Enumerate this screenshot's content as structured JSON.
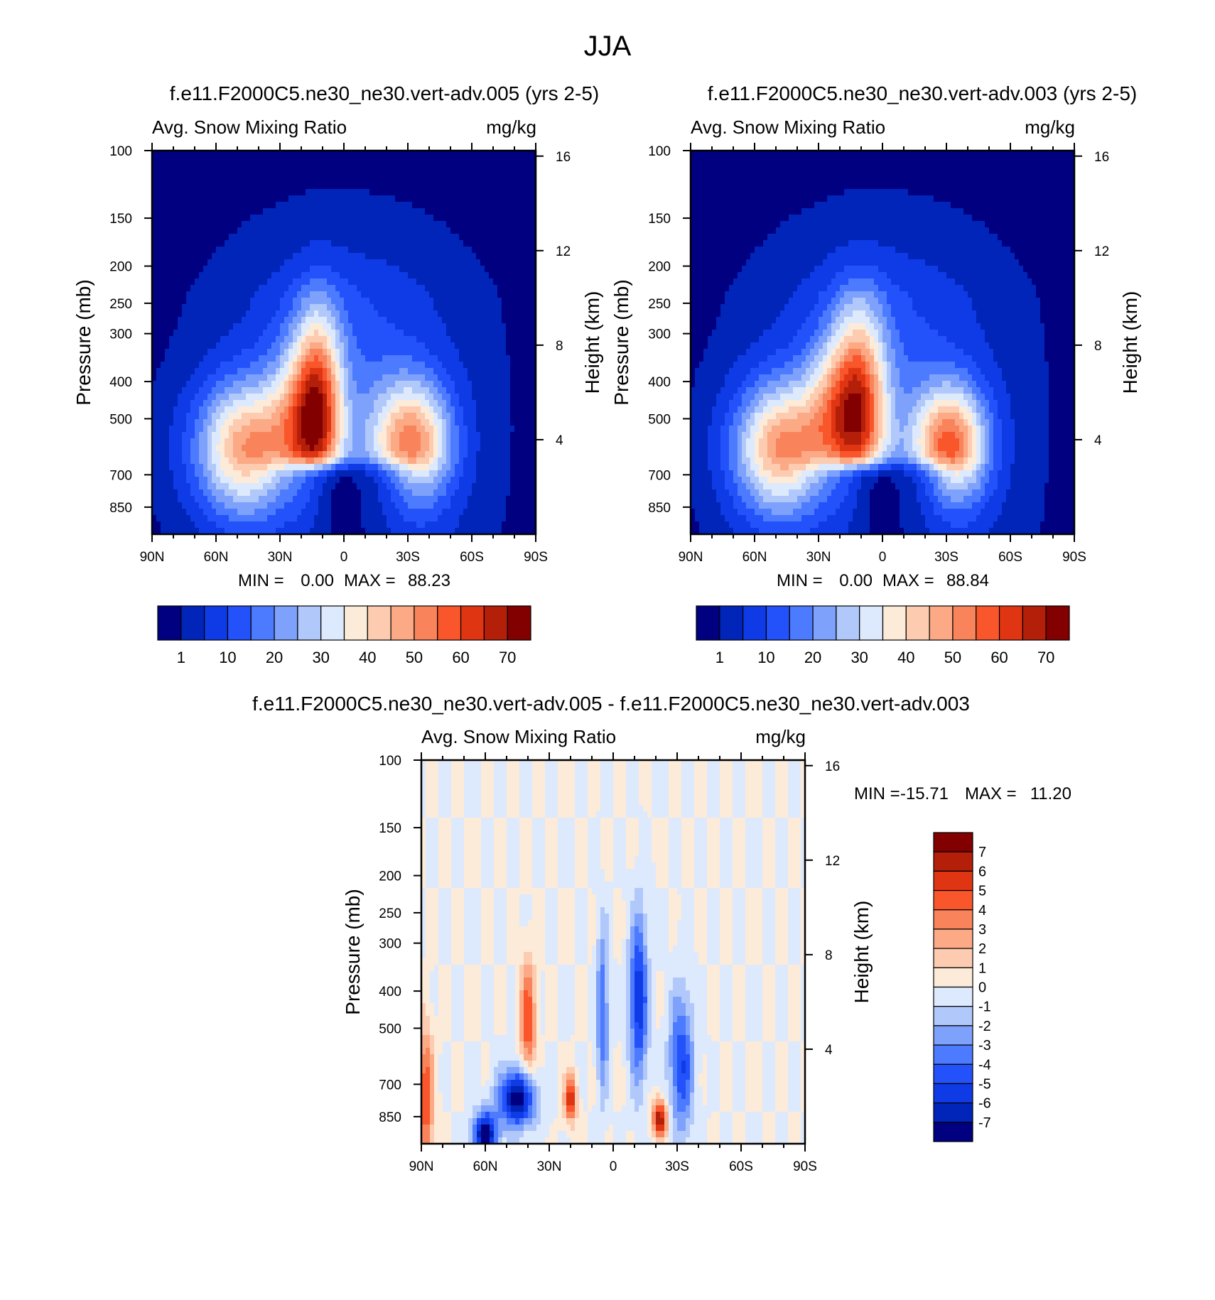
{
  "figure_title": "JJA",
  "chart_data": [
    {
      "type": "heatmap",
      "id": "case-a",
      "title": "f.e11.F2000C5.ne30_ne30.vert-adv.005 (yrs 2-5)",
      "left_label": "Avg. Snow Mixing Ratio",
      "right_label": "mg/kg",
      "ylabel": "Pressure (mb)",
      "y2label": "Height (km)",
      "x_ticks": [
        "90N",
        "60N",
        "30N",
        "0",
        "30S",
        "60S",
        "90S"
      ],
      "x_values": [
        -90,
        -60,
        -30,
        0,
        30,
        60,
        90
      ],
      "y_ticks": [
        "100",
        "150",
        "200",
        "250",
        "300",
        "400",
        "500",
        "700",
        "850"
      ],
      "y_values": [
        100,
        150,
        200,
        250,
        300,
        400,
        500,
        700,
        850
      ],
      "ylim": [
        100,
        1000
      ],
      "y2_ticks": [
        "16",
        "12",
        "8",
        "4"
      ],
      "y2_values": [
        16,
        12,
        8,
        4
      ],
      "min_label": "MIN =",
      "min_value": "0.00",
      "max_label": "MAX =",
      "max_value": "88.23",
      "colorbar": {
        "orientation": "horizontal",
        "labels": [
          "1",
          "10",
          "20",
          "30",
          "40",
          "50",
          "60",
          "70"
        ],
        "levels": [
          1,
          5,
          10,
          15,
          20,
          25,
          30,
          35,
          40,
          45,
          50,
          55,
          60,
          65,
          70
        ],
        "colors": [
          "#000080",
          "#0025b8",
          "#0f3be6",
          "#2352fa",
          "#4d7bff",
          "#7ea1fb",
          "#b1c8fb",
          "#dde9fc",
          "#fdebd9",
          "#fccbb0",
          "#fca986",
          "#f9845b",
          "#f9562b",
          "#e03512",
          "#b31f09",
          "#820000"
        ]
      },
      "features": [
        {
          "lat": -45,
          "lev": 600,
          "amp": 45,
          "sx": 17,
          "sy": 0.28
        },
        {
          "lat": -12,
          "lev": 480,
          "amp": 48,
          "sx": 8,
          "sy": 0.42
        },
        {
          "lat": 32,
          "lev": 580,
          "amp": 45,
          "sx": 13,
          "sy": 0.26
        },
        {
          "lat": -22,
          "lev": 480,
          "amp": 18,
          "sx": 9,
          "sy": 0.32
        },
        {
          "lat": 0,
          "lev": 500,
          "amp": 14,
          "sx": 34,
          "sy": 0.9
        }
      ]
    },
    {
      "type": "heatmap",
      "id": "case-b",
      "title": "f.e11.F2000C5.ne30_ne30.vert-adv.003 (yrs 2-5)",
      "left_label": "Avg. Snow Mixing Ratio",
      "right_label": "mg/kg",
      "ylabel": "Pressure (mb)",
      "y2label": "Height (km)",
      "x_ticks": [
        "90N",
        "60N",
        "30N",
        "0",
        "30S",
        "60S",
        "90S"
      ],
      "x_values": [
        -90,
        -60,
        -30,
        0,
        30,
        60,
        90
      ],
      "y_ticks": [
        "100",
        "150",
        "200",
        "250",
        "300",
        "400",
        "500",
        "700",
        "850"
      ],
      "y_values": [
        100,
        150,
        200,
        250,
        300,
        400,
        500,
        700,
        850
      ],
      "ylim": [
        100,
        1000
      ],
      "y2_ticks": [
        "16",
        "12",
        "8",
        "4"
      ],
      "y2_values": [
        16,
        12,
        8,
        4
      ],
      "min_label": "MIN =",
      "min_value": "0.00",
      "max_label": "MAX =",
      "max_value": "88.84",
      "colorbar": {
        "orientation": "horizontal",
        "labels": [
          "1",
          "10",
          "20",
          "30",
          "40",
          "50",
          "60",
          "70"
        ],
        "levels": [
          1,
          5,
          10,
          15,
          20,
          25,
          30,
          35,
          40,
          45,
          50,
          55,
          60,
          65,
          70
        ],
        "colors": [
          "#000080",
          "#0025b8",
          "#0f3be6",
          "#2352fa",
          "#4d7bff",
          "#7ea1fb",
          "#b1c8fb",
          "#dde9fc",
          "#fdebd9",
          "#fccbb0",
          "#fca986",
          "#f9845b",
          "#f9562b",
          "#e03512",
          "#b31f09",
          "#820000"
        ]
      },
      "features": [
        {
          "lat": -47,
          "lev": 600,
          "amp": 46,
          "sx": 16,
          "sy": 0.28
        },
        {
          "lat": -11,
          "lev": 470,
          "amp": 50,
          "sx": 9,
          "sy": 0.42
        },
        {
          "lat": 32,
          "lev": 590,
          "amp": 50,
          "sx": 12,
          "sy": 0.25
        },
        {
          "lat": -25,
          "lev": 470,
          "amp": 20,
          "sx": 9,
          "sy": 0.3
        },
        {
          "lat": 0,
          "lev": 500,
          "amp": 14,
          "sx": 34,
          "sy": 0.9
        }
      ]
    },
    {
      "type": "heatmap",
      "id": "difference",
      "title": "f.e11.F2000C5.ne30_ne30.vert-adv.005 - f.e11.F2000C5.ne30_ne30.vert-adv.003",
      "left_label": "Avg. Snow Mixing Ratio",
      "right_label": "mg/kg",
      "ylabel": "Pressure (mb)",
      "y2label": "Height (km)",
      "x_ticks": [
        "90N",
        "60N",
        "30N",
        "0",
        "30S",
        "60S",
        "90S"
      ],
      "x_values": [
        -90,
        -60,
        -30,
        0,
        30,
        60,
        90
      ],
      "y_ticks": [
        "100",
        "150",
        "200",
        "250",
        "300",
        "400",
        "500",
        "700",
        "850"
      ],
      "y_values": [
        100,
        150,
        200,
        250,
        300,
        400,
        500,
        700,
        850
      ],
      "ylim": [
        100,
        1000
      ],
      "y2_ticks": [
        "16",
        "12",
        "8",
        "4"
      ],
      "y2_values": [
        16,
        12,
        8,
        4
      ],
      "min_label": "MIN =",
      "min_value": "-15.71",
      "max_label": "MAX =",
      "max_value": "11.20",
      "colorbar": {
        "orientation": "vertical",
        "labels": [
          "7",
          "6",
          "5",
          "4",
          "3",
          "2",
          "1",
          "0",
          "-1",
          "-2",
          "-3",
          "-4",
          "-5",
          "-6",
          "-7"
        ],
        "levels": [
          7,
          6,
          5,
          4,
          3,
          2,
          1,
          0,
          -1,
          -2,
          -3,
          -4,
          -5,
          -6,
          -7
        ],
        "colors": [
          "#820000",
          "#b31f09",
          "#e03512",
          "#f9562b",
          "#f9845b",
          "#fca986",
          "#fccbb0",
          "#fdebd9",
          "#dde9fc",
          "#b1c8fb",
          "#7ea1fb",
          "#4d7bff",
          "#2352fa",
          "#0f3be6",
          "#0025b8",
          "#000080"
        ]
      },
      "features": [
        {
          "lat": -40,
          "lev": 480,
          "amp": 5,
          "sx": 2.5,
          "sy": 0.25
        },
        {
          "lat": -20,
          "lev": 760,
          "amp": 6,
          "sx": 2,
          "sy": 0.1
        },
        {
          "lat": 22,
          "lev": 860,
          "amp": 7,
          "sx": 2.5,
          "sy": 0.08
        },
        {
          "lat": -88,
          "lev": 760,
          "amp": 5,
          "sx": 2.5,
          "sy": 0.3
        },
        {
          "lat": -45,
          "lev": 760,
          "amp": -8,
          "sx": 6,
          "sy": 0.12
        },
        {
          "lat": -60,
          "lev": 950,
          "amp": -8,
          "sx": 4,
          "sy": 0.1
        },
        {
          "lat": 12,
          "lev": 420,
          "amp": -6,
          "sx": 3,
          "sy": 0.35
        },
        {
          "lat": 32,
          "lev": 620,
          "amp": -5,
          "sx": 4,
          "sy": 0.3
        },
        {
          "lat": -5,
          "lev": 450,
          "amp": -4,
          "sx": 2,
          "sy": 0.35
        }
      ]
    }
  ]
}
